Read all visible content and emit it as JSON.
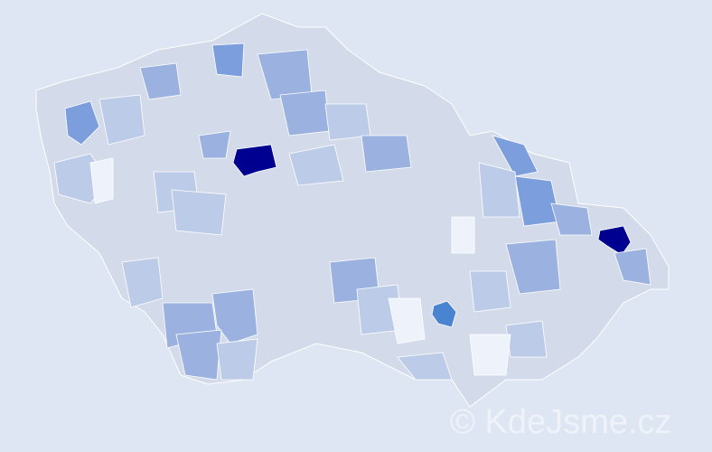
{
  "watermark": "© KdeJsme.cz",
  "colors": {
    "background": "#dde6f2",
    "base_region": "#d3dbea",
    "light": "#bccbe8",
    "medium": "#9bb2e0",
    "strong": "#7c9edd",
    "brno": "#4a84d0",
    "max": "#000090",
    "border": "#ffffff"
  }
}
